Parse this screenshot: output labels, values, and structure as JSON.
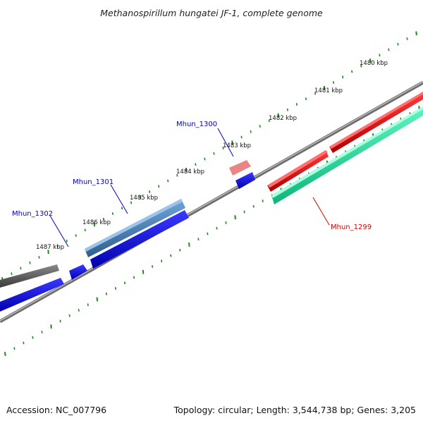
{
  "title": "Methanospirillum hungatei JF-1, complete genome",
  "footer": {
    "accession": "Accession: NC_007796",
    "summary": "Topology: circular; Length: 3,544,738 bp; Genes: 3,205"
  },
  "ticks": [
    "1480 kbp",
    "1481 kbp",
    "1482 kbp",
    "1483 kbp",
    "1484 kbp",
    "1485 kbp",
    "1486 kbp",
    "1487 kbp"
  ],
  "gene_labels": [
    {
      "text": "Mhun_1300",
      "color": "#0000cc"
    },
    {
      "text": "Mhun_1301",
      "color": "#0000cc"
    },
    {
      "text": "Mhun_1302",
      "color": "#0000cc"
    },
    {
      "text": "Mhun_1299",
      "color": "#dd0000"
    }
  ],
  "colors": {
    "tick_marks": "#1a8a1a",
    "backbone": "#7f7f7f",
    "forward_gene": "#ee0000",
    "forward_gene_light": "#f08080",
    "reverse_gene": "#0000ee",
    "reverse_gene_alt": "#4682b4",
    "other_gene": "#555555",
    "gc_feature": "#20dd99"
  }
}
